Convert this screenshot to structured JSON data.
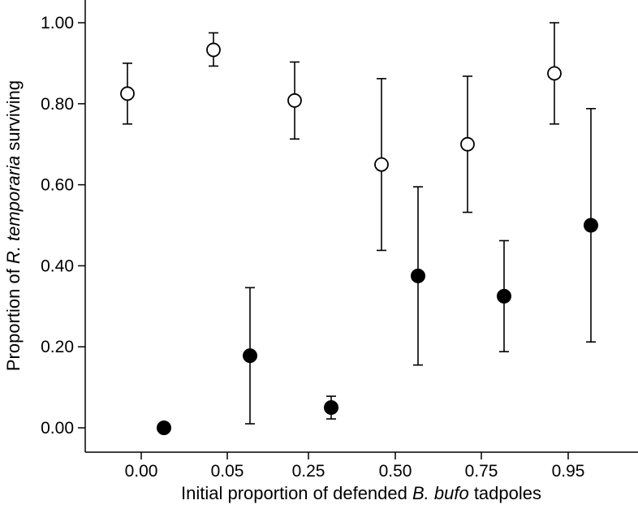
{
  "chart_data": {
    "type": "scatter",
    "title": "",
    "xlabel": {
      "before": "Initial proportion of defended ",
      "italic": "B. bufo",
      "after": " tadpoles"
    },
    "ylabel": {
      "before": "Proportion of ",
      "italic": "R. temporaria",
      "after": " surviving"
    },
    "categories": [
      "0.00",
      "0.05",
      "0.25",
      "0.50",
      "0.75",
      "0.95"
    ],
    "ylim": [
      -0.05,
      1.05
    ],
    "yticks": [
      0.0,
      0.2,
      0.4,
      0.6,
      0.8,
      1.0
    ],
    "ytick_labels": [
      "0.00",
      "0.20",
      "0.40",
      "0.60",
      "0.80",
      "1.00"
    ],
    "grid": false,
    "legend": "none",
    "series": [
      {
        "marker": "open-circle",
        "points": [
          {
            "category": "0.00",
            "y": 0.825,
            "lower": 0.75,
            "upper": 0.9
          },
          {
            "category": "0.05",
            "y": 0.933,
            "lower": 0.893,
            "upper": 0.975
          },
          {
            "category": "0.25",
            "y": 0.808,
            "lower": 0.713,
            "upper": 0.903
          },
          {
            "category": "0.50",
            "y": 0.65,
            "lower": 0.438,
            "upper": 0.862
          },
          {
            "category": "0.75",
            "y": 0.7,
            "lower": 0.532,
            "upper": 0.868
          },
          {
            "category": "0.95",
            "y": 0.875,
            "lower": 0.75,
            "upper": 1.0
          }
        ]
      },
      {
        "marker": "filled-circle",
        "points": [
          {
            "category": "0.00",
            "y": 0.0
          },
          {
            "category": "0.05",
            "y": 0.178,
            "lower": 0.01,
            "upper": 0.346
          },
          {
            "category": "0.25",
            "y": 0.05,
            "lower": 0.022,
            "upper": 0.078
          },
          {
            "category": "0.50",
            "y": 0.375,
            "lower": 0.155,
            "upper": 0.595
          },
          {
            "category": "0.75",
            "y": 0.325,
            "lower": 0.188,
            "upper": 0.462
          },
          {
            "category": "0.95",
            "y": 0.5,
            "lower": 0.212,
            "upper": 0.788
          }
        ]
      }
    ]
  }
}
